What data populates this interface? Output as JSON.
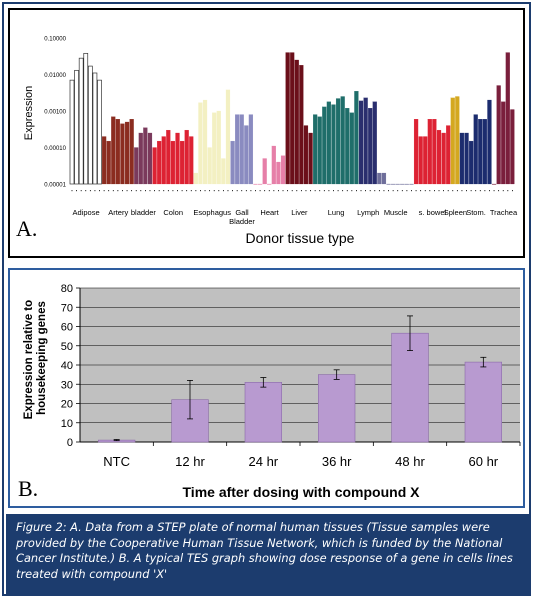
{
  "chart_data": [
    {
      "type": "bar",
      "panel_label": "A.",
      "title": "",
      "xlabel": "Donor tissue type",
      "ylabel": "Expression",
      "yscale": "log",
      "ylim": [
        1e-05,
        0.1
      ],
      "ytick_labels": [
        "0.10000",
        "0.01000",
        "0.00100",
        "0.00010",
        "0.00001"
      ],
      "yticks": [
        0.1,
        0.01,
        0.001,
        0.0001,
        1e-05
      ],
      "grid": false,
      "groups": [
        {
          "name": "Adipose",
          "color": "#ffffff",
          "values": [
            0.007,
            0.013,
            0.028,
            0.038,
            0.017,
            0.011,
            0.007
          ]
        },
        {
          "name": "Artery",
          "color": "#8b2c20",
          "values": [
            0.0002,
            0.00015,
            0.0007,
            0.0006,
            0.00045,
            0.0005,
            0.0006
          ]
        },
        {
          "name": "bladder",
          "color": "#7a3a5c",
          "values": [
            0.0001,
            0.00025,
            0.00035,
            0.00025
          ]
        },
        {
          "name": "Colon",
          "color": "#dd2233",
          "values": [
            0.0001,
            0.00015,
            0.0002,
            0.0003,
            0.00015,
            0.00025,
            0.00015,
            0.0003,
            0.0002
          ]
        },
        {
          "name": "Esophagus",
          "color": "#f3f0c2",
          "values": [
            2e-05,
            0.0017,
            0.002,
            0.0001,
            0.0009,
            0.001,
            5e-05,
            0.0038
          ]
        },
        {
          "name": "Gall Bladder",
          "color": "#8a8bc0",
          "values": [
            0.00015,
            0.0008,
            0.0008,
            0.0004,
            0.0008
          ]
        },
        {
          "name": "Heart",
          "color": "#e67fa8",
          "values": [
            1e-05,
            1e-05,
            5e-05,
            1e-05,
            0.00011,
            4e-05,
            6e-05
          ]
        },
        {
          "name": "Liver",
          "color": "#6b0f1a",
          "values": [
            0.04,
            0.04,
            0.025,
            0.018,
            0.0004,
            0.00025
          ]
        },
        {
          "name": "Lung",
          "color": "#1f6e6a",
          "values": [
            0.0008,
            0.0007,
            0.0013,
            0.0018,
            0.0015,
            0.0022,
            0.0025,
            0.0012,
            0.0009,
            0.0035
          ]
        },
        {
          "name": "Lymph",
          "color": "#2a2e6e",
          "values": [
            0.0019,
            0.0023,
            0.0012,
            0.0018
          ]
        },
        {
          "name": "Muscle",
          "color": "#6e6e9a",
          "values": [
            2e-05,
            2e-05,
            1e-05,
            1e-05,
            1e-05,
            1e-05,
            1e-05,
            1e-05
          ]
        },
        {
          "name": "s. bowel",
          "color": "#dd2233",
          "values": [
            0.0006,
            0.0002,
            0.0002,
            0.0006,
            0.0006,
            0.0003,
            0.00025,
            0.0004
          ]
        },
        {
          "name": "Spleen",
          "color": "#d4a820",
          "values": [
            0.0023,
            0.0025
          ]
        },
        {
          "name": "Stom.",
          "color": "#1c2c6e",
          "values": [
            0.00025,
            0.00025,
            0.00015,
            0.0008,
            0.0006,
            0.0006,
            0.002
          ]
        },
        {
          "name": "Trachea",
          "color": "#7a1f3c",
          "values": [
            1e-05,
            0.005,
            0.0018,
            0.04,
            0.0011
          ]
        }
      ]
    },
    {
      "type": "bar",
      "panel_label": "B.",
      "title": "",
      "xlabel": "Time after dosing with compound X",
      "ylabel": "Expression relative to housekeeping genes",
      "ylim": [
        0,
        80
      ],
      "yticks": [
        0,
        10,
        20,
        30,
        40,
        50,
        60,
        70,
        80
      ],
      "grid": true,
      "categories": [
        "NTC",
        "12 hr",
        "24 hr",
        "36 hr",
        "48 hr",
        "60 hr"
      ],
      "values": [
        1,
        22,
        31,
        35,
        56.5,
        41.5
      ],
      "errors": [
        0.3,
        10,
        2.5,
        2.5,
        9,
        2.5
      ],
      "bar_color": "#b89ad0",
      "background_color": "#c0c0c0"
    }
  ],
  "caption": {
    "text": "Figure 2: A. Data from a STEP plate of normal human tissues (Tissue samples were provided by the Cooperative Human Tissue Network, which is funded by the National Cancer Institute.) B. A typical TES graph showing dose response of a gene in cells lines treated with compound 'X'"
  }
}
